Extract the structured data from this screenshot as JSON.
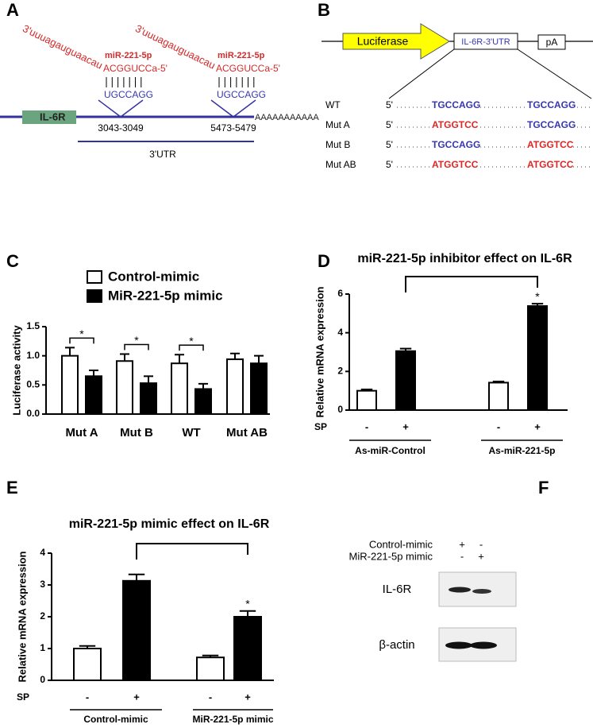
{
  "panel_labels": [
    "A",
    "B",
    "C",
    "D",
    "E",
    "F"
  ],
  "diagram_a": {
    "gene": "IL-6R",
    "poly_a": "AAAAAAAAAAA",
    "utr_label": "3'UTR",
    "sites": [
      {
        "mirna_tail": "3'uuuagauguaacau",
        "mirna_name": "miR-221-5p",
        "mirna_seed": "ACGGUCCa-5'",
        "target": "UGCCAGG",
        "position": "3043-3049"
      },
      {
        "mirna_tail": "3'uuuagauguaacau",
        "mirna_name": "miR-221-5p",
        "mirna_seed": "ACGGUCCa-5'",
        "target": "UGCCAGG",
        "position": "5473-5479"
      }
    ]
  },
  "diagram_b": {
    "reporter": "Luciferase",
    "utr_box": "IL-6R-3'UTR",
    "pa_box": "pA",
    "rows": [
      {
        "name": "WT",
        "end": "5'",
        "sites": [
          {
            "text": "TGCCAGG",
            "color": "#3636b0"
          },
          {
            "text": "TGCCAGG",
            "color": "#3636b0"
          }
        ]
      },
      {
        "name": "Mut A",
        "end": "5'",
        "sites": [
          {
            "text": "ATGGTCC",
            "color": "#e02424"
          },
          {
            "text": "TGCCAGG",
            "color": "#3636b0"
          }
        ]
      },
      {
        "name": "Mut B",
        "end": "5'",
        "sites": [
          {
            "text": "TGCCAGG",
            "color": "#3636b0"
          },
          {
            "text": "ATGGTCC",
            "color": "#e02424"
          }
        ]
      },
      {
        "name": "Mut AB",
        "end": "5'",
        "sites": [
          {
            "text": "ATGGTCC",
            "color": "#e02424"
          },
          {
            "text": "ATGGTCC",
            "color": "#e02424"
          }
        ]
      }
    ]
  },
  "chart_data": [
    {
      "type": "grouped_bar",
      "categories": [
        "Mut A",
        "Mut B",
        "WT",
        "Mut AB"
      ],
      "series": [
        {
          "name": "Control-mimic",
          "color": "#ffffff",
          "values": [
            1.0,
            0.91,
            0.87,
            0.94
          ],
          "errors": [
            0.14,
            0.12,
            0.15,
            0.1
          ]
        },
        {
          "name": "MiR-221-5p mimic",
          "color": "#000000",
          "values": [
            0.65,
            0.53,
            0.43,
            0.87
          ],
          "errors": [
            0.1,
            0.12,
            0.09,
            0.13
          ]
        }
      ],
      "ylabel": "Luciferase activity",
      "ylim": [
        0,
        1.5
      ],
      "yticks": [
        {
          "value": 0,
          "label": "0.0"
        },
        {
          "value": 0.5,
          "label": "0.5"
        },
        {
          "value": 1,
          "label": "1.0"
        },
        {
          "value": 1.5,
          "label": "1.5"
        }
      ],
      "significance": [
        "*",
        "*",
        "*",
        null
      ]
    },
    {
      "type": "bar",
      "title": "miR-221-5p inhibitor effect on IL-6R",
      "ylabel": "Relative mRNA expression",
      "row_label": "SP",
      "categories": [
        "-",
        "+",
        "-",
        "+"
      ],
      "groups": [
        "As-miR-Control",
        "As-miR-221-5p"
      ],
      "values": [
        1.0,
        3.05,
        1.42,
        5.38
      ],
      "errors": [
        0.07,
        0.13,
        0.06,
        0.12
      ],
      "colors": [
        "#ffffff",
        "#000000",
        "#ffffff",
        "#000000"
      ],
      "ylim": [
        0,
        6
      ],
      "yticks": [
        0,
        2,
        4,
        6
      ],
      "significance": "*"
    },
    {
      "type": "bar",
      "title": "miR-221-5p mimic effect on IL-6R",
      "ylabel": "Relative mRNA expression",
      "row_label": "SP",
      "categories": [
        "-",
        "+",
        "-",
        "+"
      ],
      "groups": [
        "Control-mimic",
        "MiR-221-5p mimic"
      ],
      "values": [
        1.0,
        3.13,
        0.72,
        2.0
      ],
      "errors": [
        0.08,
        0.2,
        0.06,
        0.18
      ],
      "colors": [
        "#ffffff",
        "#000000",
        "#ffffff",
        "#000000"
      ],
      "ylim": [
        0,
        4
      ],
      "yticks": [
        0,
        1,
        2,
        3,
        4
      ],
      "significance": "*"
    }
  ],
  "blot_f": {
    "conditions": [
      {
        "name": "Control-mimic",
        "marks": [
          "+",
          "-"
        ]
      },
      {
        "name": "MiR-221-5p mimic",
        "marks": [
          "-",
          "+"
        ]
      }
    ],
    "bands": [
      "IL-6R",
      "β-actin"
    ]
  }
}
